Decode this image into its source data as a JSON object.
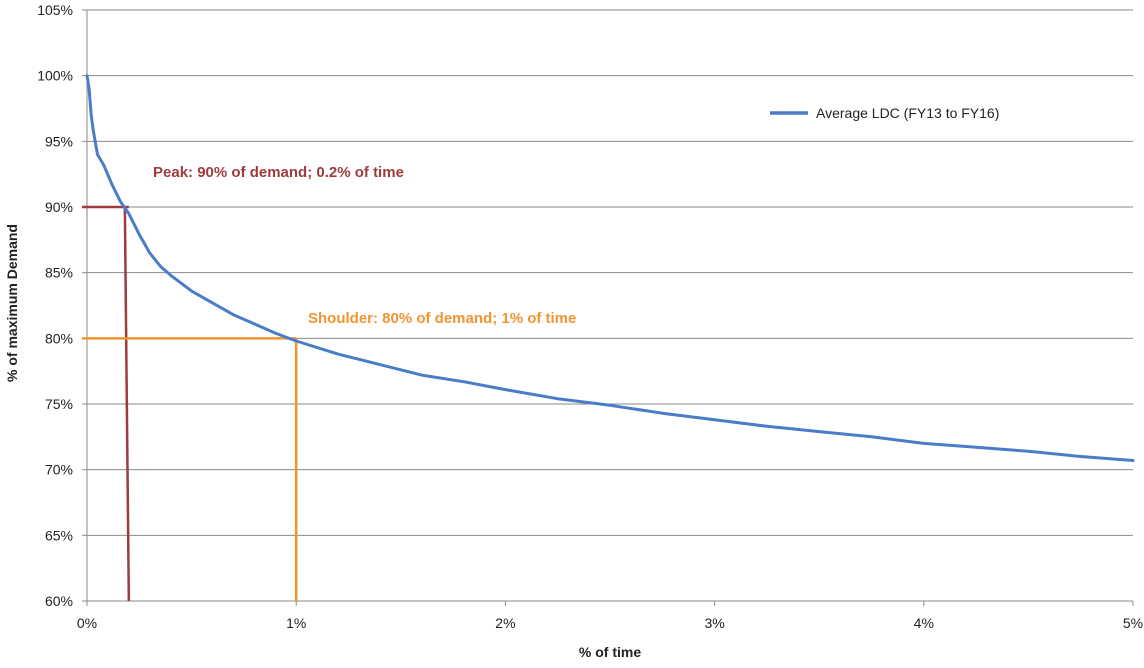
{
  "chart_data": {
    "type": "line",
    "title": "",
    "xlabel": "% of time",
    "ylabel": "% of maximum Demand",
    "xlim": [
      0,
      5
    ],
    "ylim": [
      60,
      105
    ],
    "x_ticks": [
      0,
      1,
      2,
      3,
      4,
      5
    ],
    "x_tick_labels": [
      "0%",
      "1%",
      "2%",
      "3%",
      "4%",
      "5%"
    ],
    "y_ticks": [
      60,
      65,
      70,
      75,
      80,
      85,
      90,
      95,
      100,
      105
    ],
    "y_tick_labels": [
      "60%",
      "65%",
      "70%",
      "75%",
      "80%",
      "85%",
      "90%",
      "95%",
      "100%",
      "105%"
    ],
    "grid": "horizontal",
    "legend_position": "top-right",
    "series": [
      {
        "name": "Average LDC (FY13 to FY16)",
        "color": "#4a7cc7",
        "x": [
          0,
          0.01,
          0.02,
          0.03,
          0.05,
          0.08,
          0.12,
          0.16,
          0.2,
          0.25,
          0.3,
          0.35,
          0.4,
          0.5,
          0.6,
          0.7,
          0.8,
          0.9,
          1.0,
          1.2,
          1.4,
          1.6,
          1.8,
          2.0,
          2.25,
          2.5,
          2.75,
          3.0,
          3.25,
          3.5,
          3.75,
          4.0,
          4.25,
          4.5,
          4.75,
          5.0
        ],
        "y": [
          100,
          99,
          97,
          95.8,
          94,
          93.2,
          91.7,
          90.4,
          89.5,
          87.9,
          86.5,
          85.5,
          84.8,
          83.6,
          82.7,
          81.8,
          81.1,
          80.4,
          79.8,
          78.8,
          78.0,
          77.2,
          76.7,
          76.1,
          75.4,
          74.9,
          74.3,
          73.8,
          73.3,
          72.9,
          72.5,
          72.0,
          71.7,
          71.4,
          71.0,
          70.7
        ]
      }
    ],
    "annotations": [
      {
        "name": "peak",
        "text": "Peak: 90% of demand; 0.2% of time",
        "color": "#9e3b3b",
        "x_mark": 0.2,
        "y_mark": 90
      },
      {
        "name": "shoulder",
        "text": "Shoulder: 80% of demand; 1% of time",
        "color": "#f0952f",
        "x_mark": 1,
        "y_mark": 80
      }
    ]
  }
}
